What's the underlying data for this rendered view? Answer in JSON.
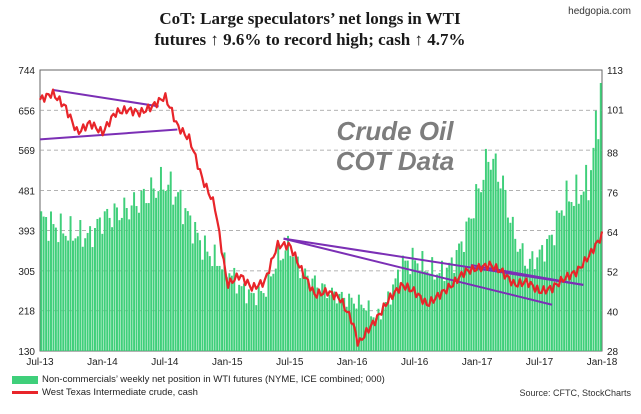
{
  "title_line1": "CoT: Large speculators’ net longs in WTI",
  "title_line2": "futures ↑ 9.6% to record high; cash ↑ 4.7%",
  "brand": "hedgopia.com",
  "annotation": "Crude Oil\nCOT Data",
  "source": "Source: CFTC, StockCharts",
  "colors": {
    "bars": "#3fcf7a",
    "line": "#e8252a",
    "trend": "#7b2fb5",
    "grid": "#999999"
  },
  "legend": [
    {
      "label": "Non-commercials’ weekly net position in WTI futures (NYME, ICE combined; 000)"
    },
    {
      "label": "West Texas Intermediate crude, cash"
    }
  ],
  "chart_data": {
    "type": "bar+line",
    "x_labels": [
      "Jul-13",
      "Jan-14",
      "Jul-14",
      "Jan-15",
      "Jul-15",
      "Jan-16",
      "Jul-16",
      "Jan-17",
      "Jul-17",
      "Jan-18"
    ],
    "left_axis": {
      "ticks": [
        130,
        218,
        305,
        393,
        481,
        569,
        656,
        744
      ],
      "ylim": [
        130,
        744
      ]
    },
    "right_axis": {
      "ticks": [
        28,
        40,
        52,
        64,
        76,
        88,
        101,
        113
      ],
      "ylim": [
        28,
        113
      ]
    },
    "grid": true,
    "series": [
      {
        "name": "Non-commercials’ weekly net position in WTI futures (NYME, ICE combined; 000)",
        "type": "bar",
        "axis": "left",
        "x": [
          2013.5,
          2013.7,
          2013.9,
          2014.0,
          2014.2,
          2014.4,
          2014.5,
          2014.6,
          2014.8,
          2014.9,
          2015.0,
          2015.1,
          2015.2,
          2015.3,
          2015.4,
          2015.5,
          2015.6,
          2015.7,
          2015.8,
          2015.9,
          2016.0,
          2016.1,
          2016.2,
          2016.3,
          2016.4,
          2016.5,
          2016.6,
          2016.7,
          2016.8,
          2016.9,
          2017.0,
          2017.1,
          2017.2,
          2017.3,
          2017.4,
          2017.5,
          2017.6,
          2017.7,
          2017.8,
          2017.9,
          2018.0
        ],
        "y": [
          420,
          390,
          380,
          420,
          440,
          480,
          500,
          470,
          360,
          330,
          310,
          270,
          250,
          260,
          330,
          360,
          300,
          280,
          260,
          250,
          240,
          230,
          200,
          250,
          320,
          330,
          310,
          300,
          320,
          380,
          470,
          560,
          500,
          380,
          320,
          340,
          380,
          460,
          470,
          500,
          720
        ]
      },
      {
        "name": "West Texas Intermediate crude, cash",
        "type": "line",
        "axis": "right",
        "x": [
          2013.5,
          2013.6,
          2013.7,
          2013.8,
          2013.9,
          2014.0,
          2014.1,
          2014.2,
          2014.3,
          2014.4,
          2014.5,
          2014.55,
          2014.6,
          2014.7,
          2014.8,
          2014.9,
          2015.0,
          2015.1,
          2015.2,
          2015.3,
          2015.4,
          2015.5,
          2015.6,
          2015.7,
          2015.8,
          2015.9,
          2016.0,
          2016.05,
          2016.1,
          2016.2,
          2016.3,
          2016.4,
          2016.5,
          2016.6,
          2016.7,
          2016.8,
          2016.9,
          2017.0,
          2017.1,
          2017.2,
          2017.3,
          2017.4,
          2017.5,
          2017.6,
          2017.7,
          2017.8,
          2017.9,
          2018.0
        ],
        "y": [
          104,
          106,
          102,
          94,
          97,
          94,
          100,
          101,
          100,
          102,
          105,
          101,
          96,
          92,
          80,
          72,
          48,
          51,
          47,
          49,
          60,
          60,
          52,
          45,
          46,
          44,
          37,
          30,
          33,
          38,
          44,
          48,
          46,
          42,
          45,
          48,
          52,
          53,
          54,
          52,
          48,
          49,
          46,
          47,
          50,
          52,
          57,
          63
        ]
      }
    ]
  }
}
